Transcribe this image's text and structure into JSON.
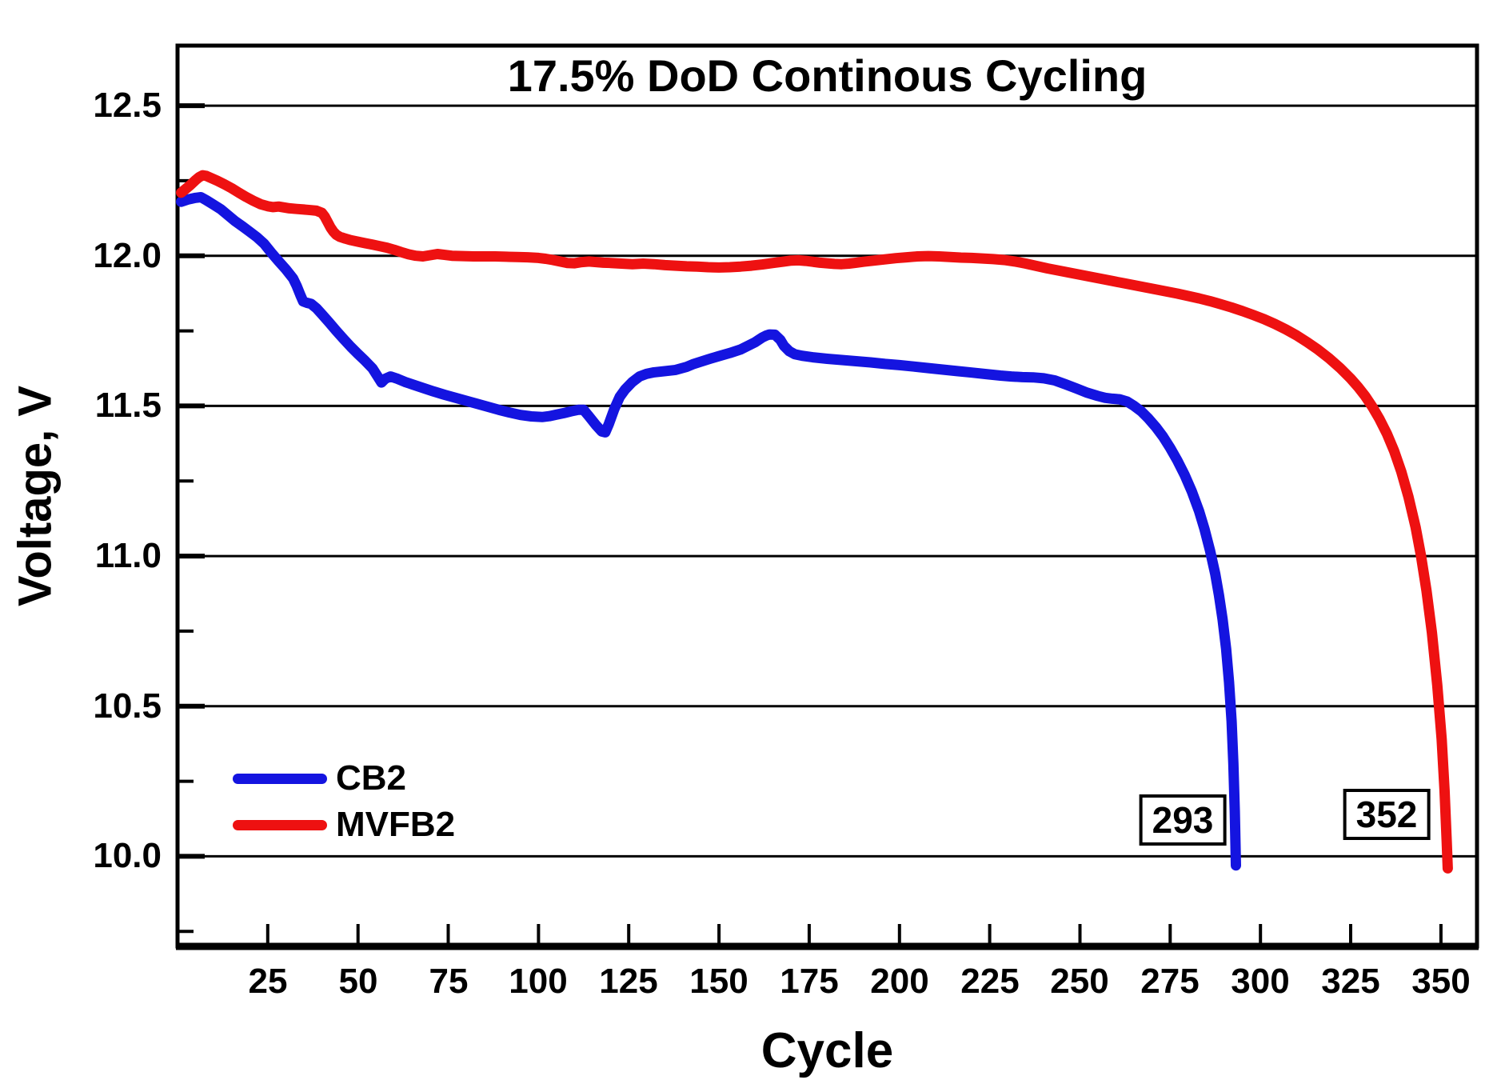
{
  "colors": {
    "background": "#ffffff",
    "axis": "#000000",
    "grid": "#000000",
    "cb2": "#1414e0",
    "mvfb2": "#ee1111"
  },
  "chart_data": {
    "type": "line",
    "title": "17.5% DoD Continous Cycling",
    "xlabel": "Cycle",
    "ylabel": "Voltage, V",
    "xlim": [
      0,
      360
    ],
    "ylim": [
      9.7,
      12.7
    ],
    "grid": "horizontal-only",
    "legend_position": "lower-left",
    "x_ticks": {
      "values": [
        25,
        50,
        75,
        100,
        125,
        150,
        175,
        200,
        225,
        250,
        275,
        300,
        325,
        350
      ],
      "labels": [
        "25",
        "50",
        "75",
        "100",
        "125",
        "150",
        "175",
        "200",
        "225",
        "250",
        "275",
        "300",
        "325",
        "350"
      ]
    },
    "y_ticks": {
      "values": [
        12.5,
        12.0,
        11.5,
        11.0,
        10.5,
        10.0
      ],
      "labels": [
        "12.5",
        "12.0",
        "11.5",
        "11.0",
        "10.5",
        "10.0"
      ]
    },
    "y_minor_ticks": [
      12.25,
      11.75,
      11.25,
      10.75,
      10.25,
      9.75
    ],
    "annotations": [
      {
        "text": "293",
        "cycle": 278.5,
        "voltage": 10.12
      },
      {
        "text": "352",
        "cycle": 335.0,
        "voltage": 10.14
      }
    ],
    "series": [
      {
        "name": "CB2",
        "color": "#1414e0",
        "failure_cycle": 293,
        "points": [
          [
            1,
            12.18
          ],
          [
            3,
            12.188
          ],
          [
            5,
            12.193
          ],
          [
            6.5,
            12.195
          ],
          [
            8,
            12.185
          ],
          [
            10,
            12.17
          ],
          [
            12,
            12.155
          ],
          [
            14,
            12.135
          ],
          [
            16,
            12.115
          ],
          [
            18,
            12.098
          ],
          [
            20,
            12.08
          ],
          [
            22,
            12.062
          ],
          [
            24,
            12.04
          ],
          [
            26,
            12.01
          ],
          [
            28,
            11.982
          ],
          [
            30,
            11.955
          ],
          [
            32,
            11.925
          ],
          [
            33,
            11.9
          ],
          [
            34,
            11.87
          ],
          [
            34.8,
            11.848
          ],
          [
            36,
            11.843
          ],
          [
            37,
            11.84
          ],
          [
            38.5,
            11.825
          ],
          [
            40,
            11.805
          ],
          [
            42,
            11.778
          ],
          [
            44,
            11.75
          ],
          [
            46,
            11.723
          ],
          [
            48,
            11.697
          ],
          [
            50,
            11.673
          ],
          [
            52,
            11.65
          ],
          [
            54,
            11.625
          ],
          [
            55.5,
            11.597
          ],
          [
            56.5,
            11.578
          ],
          [
            57.5,
            11.59
          ],
          [
            59,
            11.598
          ],
          [
            61,
            11.59
          ],
          [
            63,
            11.58
          ],
          [
            65,
            11.572
          ],
          [
            68,
            11.56
          ],
          [
            71,
            11.548
          ],
          [
            74,
            11.537
          ],
          [
            77,
            11.527
          ],
          [
            80,
            11.517
          ],
          [
            83,
            11.507
          ],
          [
            86,
            11.497
          ],
          [
            89,
            11.487
          ],
          [
            92,
            11.478
          ],
          [
            95,
            11.47
          ],
          [
            98,
            11.465
          ],
          [
            101,
            11.463
          ],
          [
            103,
            11.466
          ],
          [
            105,
            11.471
          ],
          [
            107,
            11.476
          ],
          [
            109,
            11.482
          ],
          [
            111,
            11.487
          ],
          [
            112.5,
            11.487
          ],
          [
            114,
            11.465
          ],
          [
            116,
            11.435
          ],
          [
            117.5,
            11.415
          ],
          [
            118.5,
            11.412
          ],
          [
            119.5,
            11.44
          ],
          [
            121,
            11.49
          ],
          [
            122.5,
            11.53
          ],
          [
            124,
            11.555
          ],
          [
            126,
            11.58
          ],
          [
            128,
            11.598
          ],
          [
            130,
            11.607
          ],
          [
            132,
            11.612
          ],
          [
            135,
            11.616
          ],
          [
            138,
            11.62
          ],
          [
            141,
            11.63
          ],
          [
            143,
            11.64
          ],
          [
            147,
            11.655
          ],
          [
            150,
            11.666
          ],
          [
            153,
            11.676
          ],
          [
            156,
            11.688
          ],
          [
            158,
            11.7
          ],
          [
            160,
            11.712
          ],
          [
            161,
            11.72
          ],
          [
            162,
            11.728
          ],
          [
            163,
            11.734
          ],
          [
            164,
            11.738
          ],
          [
            165.5,
            11.737
          ],
          [
            167,
            11.72
          ],
          [
            168,
            11.7
          ],
          [
            169.5,
            11.682
          ],
          [
            171,
            11.672
          ],
          [
            173,
            11.667
          ],
          [
            176,
            11.662
          ],
          [
            180,
            11.657
          ],
          [
            184,
            11.653
          ],
          [
            188,
            11.649
          ],
          [
            192,
            11.645
          ],
          [
            196,
            11.64
          ],
          [
            200,
            11.636
          ],
          [
            204,
            11.631
          ],
          [
            208,
            11.626
          ],
          [
            212,
            11.621
          ],
          [
            216,
            11.616
          ],
          [
            220,
            11.611
          ],
          [
            224,
            11.606
          ],
          [
            228,
            11.601
          ],
          [
            231,
            11.598
          ],
          [
            234,
            11.596
          ],
          [
            237,
            11.595
          ],
          [
            240,
            11.592
          ],
          [
            243,
            11.585
          ],
          [
            246,
            11.572
          ],
          [
            249,
            11.558
          ],
          [
            252,
            11.544
          ],
          [
            255,
            11.533
          ],
          [
            257,
            11.527
          ],
          [
            259,
            11.524
          ],
          [
            261,
            11.522
          ],
          [
            263,
            11.515
          ],
          [
            265,
            11.5
          ],
          [
            267,
            11.482
          ],
          [
            269,
            11.458
          ],
          [
            271,
            11.43
          ],
          [
            273,
            11.398
          ],
          [
            275,
            11.36
          ],
          [
            277,
            11.318
          ],
          [
            279,
            11.27
          ],
          [
            281,
            11.215
          ],
          [
            283,
            11.15
          ],
          [
            284.5,
            11.09
          ],
          [
            286,
            11.02
          ],
          [
            287.5,
            10.94
          ],
          [
            288.5,
            10.87
          ],
          [
            289.5,
            10.79
          ],
          [
            290.5,
            10.69
          ],
          [
            291.3,
            10.58
          ],
          [
            292,
            10.45
          ],
          [
            292.5,
            10.31
          ],
          [
            292.9,
            10.15
          ],
          [
            293.2,
            9.97
          ]
        ]
      },
      {
        "name": "MVFB2",
        "color": "#ee1111",
        "failure_cycle": 352,
        "points": [
          [
            1,
            12.21
          ],
          [
            2,
            12.22
          ],
          [
            3.5,
            12.235
          ],
          [
            5,
            12.252
          ],
          [
            6,
            12.262
          ],
          [
            7,
            12.268
          ],
          [
            8,
            12.266
          ],
          [
            9.5,
            12.258
          ],
          [
            11,
            12.25
          ],
          [
            13,
            12.238
          ],
          [
            15,
            12.225
          ],
          [
            17,
            12.21
          ],
          [
            19,
            12.196
          ],
          [
            21,
            12.183
          ],
          [
            23,
            12.172
          ],
          [
            25,
            12.165
          ],
          [
            26.5,
            12.162
          ],
          [
            28,
            12.164
          ],
          [
            29.5,
            12.161
          ],
          [
            31,
            12.158
          ],
          [
            33,
            12.156
          ],
          [
            35,
            12.154
          ],
          [
            37,
            12.152
          ],
          [
            38.5,
            12.15
          ],
          [
            40,
            12.143
          ],
          [
            40.8,
            12.13
          ],
          [
            41.6,
            12.112
          ],
          [
            42.4,
            12.094
          ],
          [
            43.2,
            12.08
          ],
          [
            44,
            12.07
          ],
          [
            45,
            12.063
          ],
          [
            46.5,
            12.057
          ],
          [
            48,
            12.052
          ],
          [
            50,
            12.047
          ],
          [
            52,
            12.042
          ],
          [
            54,
            12.037
          ],
          [
            56,
            12.032
          ],
          [
            58,
            12.027
          ],
          [
            60,
            12.02
          ],
          [
            62,
            12.012
          ],
          [
            64,
            12.005
          ],
          [
            66,
            12.0
          ],
          [
            68,
            11.998
          ],
          [
            70,
            12.002
          ],
          [
            72,
            12.006
          ],
          [
            74,
            12.003
          ],
          [
            76,
            12.0
          ],
          [
            79,
            11.999
          ],
          [
            82,
            11.998
          ],
          [
            85,
            11.998
          ],
          [
            88,
            11.998
          ],
          [
            91,
            11.997
          ],
          [
            94,
            11.996
          ],
          [
            97,
            11.995
          ],
          [
            100,
            11.993
          ],
          [
            102,
            11.99
          ],
          [
            104,
            11.986
          ],
          [
            106,
            11.981
          ],
          [
            108,
            11.976
          ],
          [
            110,
            11.975
          ],
          [
            112,
            11.979
          ],
          [
            114,
            11.981
          ],
          [
            116,
            11.979
          ],
          [
            118,
            11.977
          ],
          [
            120,
            11.976
          ],
          [
            123,
            11.974
          ],
          [
            126,
            11.972
          ],
          [
            129,
            11.974
          ],
          [
            132,
            11.972
          ],
          [
            135,
            11.969
          ],
          [
            138,
            11.967
          ],
          [
            141,
            11.965
          ],
          [
            144,
            11.964
          ],
          [
            147,
            11.962
          ],
          [
            150,
            11.961
          ],
          [
            153,
            11.962
          ],
          [
            156,
            11.964
          ],
          [
            159,
            11.967
          ],
          [
            162,
            11.971
          ],
          [
            165,
            11.976
          ],
          [
            168,
            11.981
          ],
          [
            170,
            11.984
          ],
          [
            172,
            11.985
          ],
          [
            174,
            11.983
          ],
          [
            176,
            11.98
          ],
          [
            178,
            11.977
          ],
          [
            180,
            11.975
          ],
          [
            182,
            11.973
          ],
          [
            184,
            11.972
          ],
          [
            186,
            11.974
          ],
          [
            188,
            11.977
          ],
          [
            190,
            11.98
          ],
          [
            193,
            11.984
          ],
          [
            196,
            11.988
          ],
          [
            199,
            11.992
          ],
          [
            202,
            11.995
          ],
          [
            205,
            11.998
          ],
          [
            208,
            11.999
          ],
          [
            211,
            11.998
          ],
          [
            214,
            11.996
          ],
          [
            217,
            11.994
          ],
          [
            220,
            11.993
          ],
          [
            223,
            11.991
          ],
          [
            226,
            11.989
          ],
          [
            229,
            11.986
          ],
          [
            232,
            11.981
          ],
          [
            235,
            11.974
          ],
          [
            238,
            11.966
          ],
          [
            241,
            11.958
          ],
          [
            244,
            11.951
          ],
          [
            247,
            11.944
          ],
          [
            250,
            11.937
          ],
          [
            253,
            11.93
          ],
          [
            256,
            11.923
          ],
          [
            259,
            11.916
          ],
          [
            262,
            11.909
          ],
          [
            265,
            11.902
          ],
          [
            268,
            11.895
          ],
          [
            271,
            11.888
          ],
          [
            274,
            11.881
          ],
          [
            277,
            11.874
          ],
          [
            280,
            11.866
          ],
          [
            283,
            11.858
          ],
          [
            286,
            11.849
          ],
          [
            289,
            11.839
          ],
          [
            292,
            11.828
          ],
          [
            295,
            11.816
          ],
          [
            298,
            11.803
          ],
          [
            301,
            11.789
          ],
          [
            304,
            11.773
          ],
          [
            307,
            11.755
          ],
          [
            310,
            11.735
          ],
          [
            313,
            11.712
          ],
          [
            316,
            11.687
          ],
          [
            319,
            11.659
          ],
          [
            322,
            11.627
          ],
          [
            325,
            11.591
          ],
          [
            327,
            11.564
          ],
          [
            329,
            11.533
          ],
          [
            331,
            11.497
          ],
          [
            333,
            11.456
          ],
          [
            335,
            11.408
          ],
          [
            337,
            11.351
          ],
          [
            339,
            11.282
          ],
          [
            341,
            11.198
          ],
          [
            343,
            11.095
          ],
          [
            344.5,
            11.0
          ],
          [
            346,
            10.885
          ],
          [
            347.5,
            10.745
          ],
          [
            349,
            10.57
          ],
          [
            350.2,
            10.39
          ],
          [
            351,
            10.22
          ],
          [
            351.6,
            10.05
          ],
          [
            351.9,
            9.96
          ]
        ]
      }
    ]
  }
}
